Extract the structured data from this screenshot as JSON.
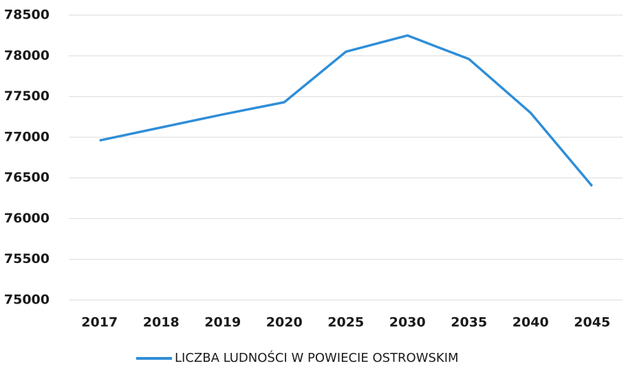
{
  "chart_data": {
    "type": "line",
    "categories": [
      "2017",
      "2018",
      "2019",
      "2020",
      "2025",
      "2030",
      "2035",
      "2040",
      "2045"
    ],
    "series": [
      {
        "name": "LICZBA LUDNOŚCI W POWIECIE OSTROWSKIM",
        "color": "#2f8ed8",
        "values": [
          76960,
          77120,
          77280,
          77430,
          78050,
          78250,
          77960,
          77300,
          76400
        ]
      }
    ],
    "ylim": [
      75000,
      78500
    ],
    "yticks": [
      75000,
      75500,
      76000,
      76500,
      77000,
      77500,
      78000,
      78500
    ],
    "grid": true,
    "legend": "bottom"
  }
}
